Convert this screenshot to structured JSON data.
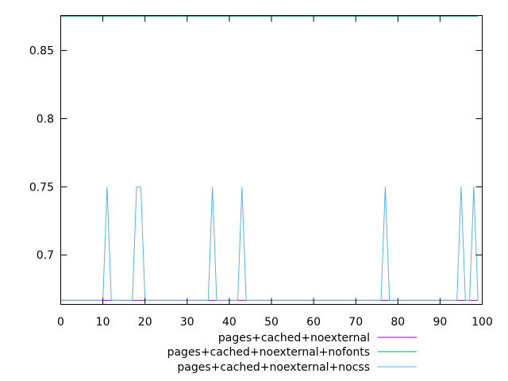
{
  "chart_data": {
    "type": "line",
    "title": "",
    "xlabel": "",
    "ylabel": "",
    "xlim": [
      0,
      100
    ],
    "ylim": [
      0.6637,
      0.8757
    ],
    "x_ticks": [
      0,
      10,
      20,
      30,
      40,
      50,
      60,
      70,
      80,
      90,
      100
    ],
    "y_ticks": [
      0.7,
      0.75,
      0.8,
      0.85
    ],
    "y_tick_labels": [
      "0.7",
      "0.75",
      "0.8",
      "0.85"
    ],
    "grid": false,
    "legend_position": "bottom-right, below plot",
    "series": [
      {
        "name": "pages+cached+noexternal",
        "color": "#9400d3",
        "points": [
          [
            0,
            0.6667
          ],
          [
            99,
            0.6667
          ]
        ]
      },
      {
        "name": "pages+cached+noexternal+nofonts",
        "color": "#009e73",
        "points": [
          [
            0,
            0.875
          ],
          [
            99,
            0.875
          ]
        ]
      },
      {
        "name": "pages+cached+noexternal+nocss",
        "color": "#56b4e9",
        "points": [
          [
            0,
            0.6667
          ],
          [
            10,
            0.6667
          ],
          [
            11,
            0.75
          ],
          [
            12,
            0.6667
          ],
          [
            17,
            0.6667
          ],
          [
            18,
            0.75
          ],
          [
            19,
            0.75
          ],
          [
            20,
            0.6667
          ],
          [
            35,
            0.6667
          ],
          [
            36,
            0.75
          ],
          [
            37,
            0.6667
          ],
          [
            42,
            0.6667
          ],
          [
            43,
            0.75
          ],
          [
            44,
            0.6667
          ],
          [
            76,
            0.6667
          ],
          [
            77,
            0.75
          ],
          [
            78,
            0.6667
          ],
          [
            94,
            0.6667
          ],
          [
            95,
            0.75
          ],
          [
            96,
            0.6667
          ],
          [
            97,
            0.6667
          ],
          [
            98,
            0.75
          ],
          [
            99,
            0.6667
          ]
        ]
      }
    ]
  }
}
